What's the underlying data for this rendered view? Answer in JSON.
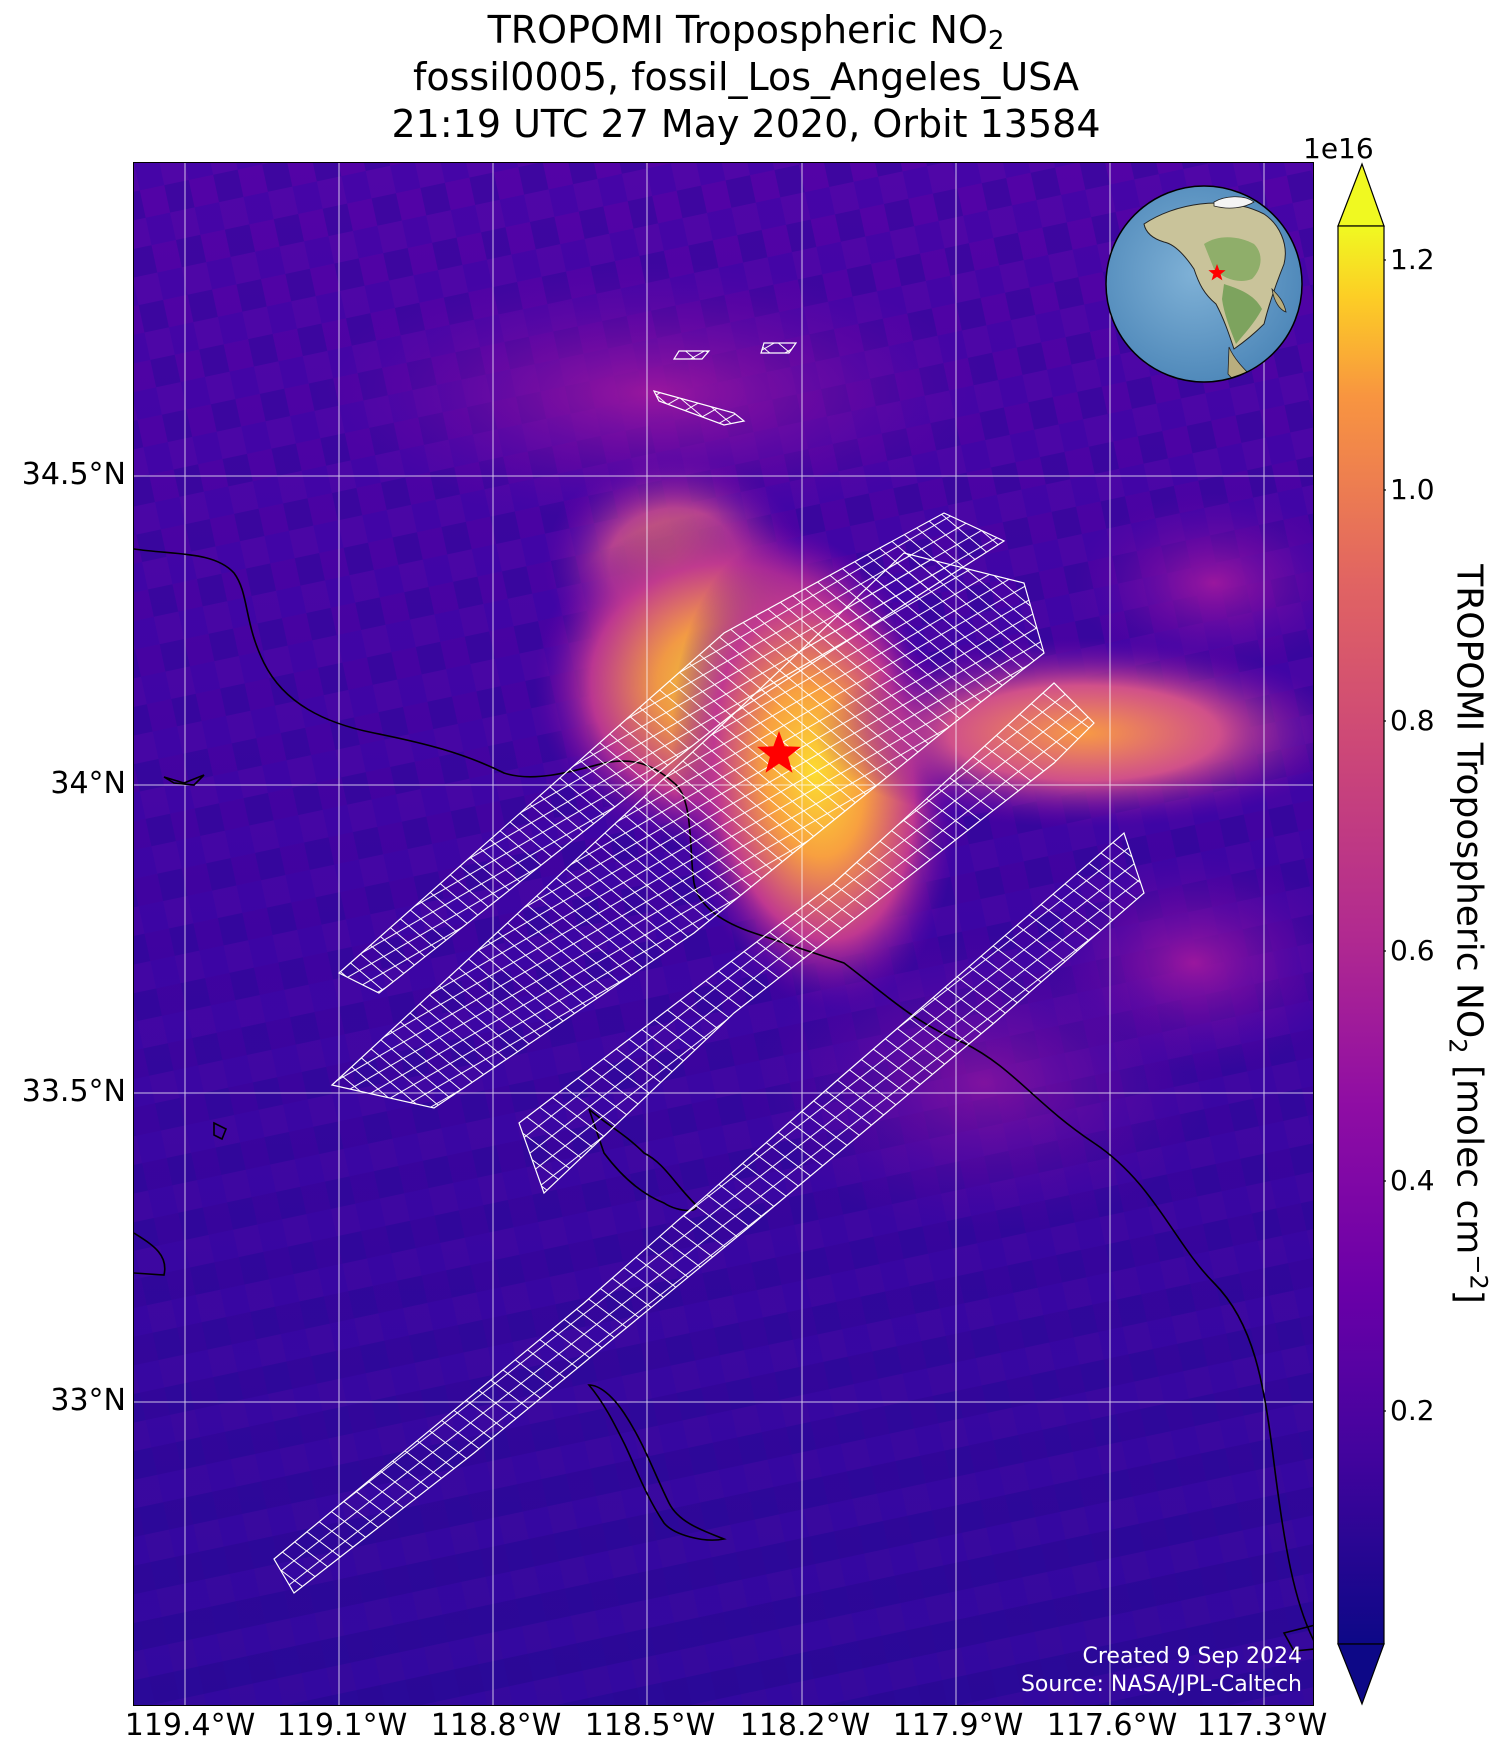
{
  "title": {
    "line1_prefix": "TROPOMI Tropospheric NO",
    "line1_subscript": "2",
    "line2": "fossil0005, fossil_Los_Angeles_USA",
    "line3": "21:19 UTC 27 May 2020, Orbit 13584"
  },
  "map": {
    "lat_labels": [
      "34.5°N",
      "34°N",
      "33.5°N",
      "33°N"
    ],
    "lon_labels": [
      "119.4°W",
      "119.1°W",
      "118.8°W",
      "118.5°W",
      "118.2°W",
      "117.9°W",
      "117.6°W",
      "117.3°W"
    ],
    "target_marker": "red-star-icon",
    "target_color": "#ff0000",
    "grid_color": "#ffffff",
    "footprint_color": "#ffffff",
    "credit_line1": "Created 9 Sep 2024",
    "credit_line2": "Source: NASA/JPL-Caltech"
  },
  "inset": {
    "globe_icon": "globe-north-america-icon",
    "marker": "red-star-icon"
  },
  "colorbar": {
    "exponent": "1e16",
    "ticks": [
      "0.2",
      "0.4",
      "0.6",
      "0.8",
      "1.0",
      "1.2"
    ],
    "label_prefix": "TROPOMI Tropospheric NO",
    "label_sub": "2",
    "label_mid": " [molec cm",
    "label_sup": "−2",
    "label_suffix": "]",
    "colormap": "plasma",
    "extend": "both"
  }
}
